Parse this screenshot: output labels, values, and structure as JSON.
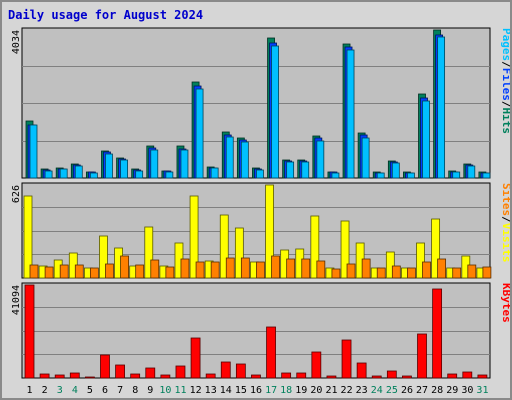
{
  "title": "Daily usage for August 2024",
  "colors": {
    "hits": "#00805c",
    "files": "#0040ff",
    "pages": "#00c0ff",
    "visits": "#ffff00",
    "sites": "#ff8000",
    "kbytes": "#ff0000",
    "weekend_label": "#00805c",
    "weekday_label": "#000000",
    "panel": "#c0c0c0"
  },
  "chart_data": [
    {
      "type": "bar",
      "title": "Daily usage for August 2024",
      "panel": "hits-files-pages",
      "categories": [
        "1",
        "2",
        "3",
        "4",
        "5",
        "6",
        "7",
        "8",
        "9",
        "10",
        "11",
        "12",
        "13",
        "14",
        "15",
        "16",
        "17",
        "18",
        "19",
        "20",
        "21",
        "22",
        "23",
        "24",
        "25",
        "26",
        "27",
        "28",
        "29",
        "30",
        "31"
      ],
      "ylim": [
        0,
        4034
      ],
      "y_tick_label": "4034",
      "legend": [
        {
          "text": "Hits",
          "color": "#00805c"
        },
        {
          "text": "Files",
          "color": "#0040ff"
        },
        {
          "text": "Pages",
          "color": "#00c0ff"
        }
      ],
      "separator": "/",
      "series": [
        {
          "name": "Hits",
          "values": [
            1549,
            232,
            271,
            379,
            170,
            746,
            558,
            232,
            875,
            201,
            864,
            2619,
            302,
            1251,
            1100,
            260,
            3816,
            498,
            486,
            1149,
            170,
            3664,
            1232,
            150,
            463,
            150,
            2282,
            4034,
            180,
            380,
            155
          ]
        },
        {
          "name": "Files",
          "values": [
            1440,
            210,
            250,
            350,
            150,
            700,
            520,
            210,
            820,
            185,
            800,
            2500,
            280,
            1180,
            1040,
            245,
            3680,
            460,
            450,
            1080,
            155,
            3560,
            1160,
            135,
            430,
            135,
            2180,
            3900,
            165,
            350,
            140
          ]
        },
        {
          "name": "Pages",
          "values": [
            1440,
            200,
            240,
            330,
            140,
            660,
            490,
            200,
            770,
            175,
            750,
            2430,
            265,
            1120,
            980,
            230,
            3600,
            440,
            430,
            1020,
            145,
            3480,
            1100,
            125,
            410,
            125,
            2100,
            3840,
            155,
            330,
            130
          ]
        }
      ]
    },
    {
      "type": "bar",
      "panel": "visits-sites",
      "categories": [
        "1",
        "2",
        "3",
        "4",
        "5",
        "6",
        "7",
        "8",
        "9",
        "10",
        "11",
        "12",
        "13",
        "14",
        "15",
        "16",
        "17",
        "18",
        "19",
        "20",
        "21",
        "22",
        "23",
        "24",
        "25",
        "26",
        "27",
        "28",
        "29",
        "30",
        "31"
      ],
      "ylim": [
        0,
        626
      ],
      "y_tick_label": "626",
      "legend": [
        {
          "text": "Visits",
          "color": "#ffff00"
        },
        {
          "text": "Sites",
          "color": "#ff8000"
        }
      ],
      "separator": "/",
      "series": [
        {
          "name": "Visits",
          "values": [
            551,
            80,
            120,
            170,
            70,
            285,
            205,
            80,
            340,
            80,
            237,
            555,
            115,
            427,
            338,
            110,
            626,
            190,
            196,
            414,
            64,
            387,
            237,
            64,
            175,
            64,
            233,
            396,
            64,
            146,
            64
          ]
        },
        {
          "name": "Sites",
          "values": [
            85,
            75,
            90,
            90,
            70,
            95,
            150,
            90,
            120,
            75,
            125,
            110,
            110,
            135,
            135,
            105,
            150,
            125,
            130,
            115,
            60,
            95,
            130,
            65,
            80,
            65,
            110,
            125,
            70,
            85,
            75
          ]
        }
      ]
    },
    {
      "type": "bar",
      "panel": "kbytes",
      "categories": [
        "1",
        "2",
        "3",
        "4",
        "5",
        "6",
        "7",
        "8",
        "9",
        "10",
        "11",
        "12",
        "13",
        "14",
        "15",
        "16",
        "17",
        "18",
        "19",
        "20",
        "21",
        "22",
        "23",
        "24",
        "25",
        "26",
        "27",
        "28",
        "29",
        "30",
        "31"
      ],
      "ylim": [
        0,
        41094
      ],
      "y_tick_label": "41094",
      "legend": [
        {
          "text": "KBytes",
          "color": "#ff0000"
        }
      ],
      "series": [
        {
          "name": "KBytes",
          "values": [
            41094,
            1700,
            1200,
            2000,
            500,
            10000,
            5800,
            1800,
            4400,
            1200,
            5100,
            17500,
            1600,
            7000,
            6000,
            1200,
            22600,
            2300,
            2300,
            11300,
            700,
            16700,
            6500,
            1100,
            3200,
            1100,
            19500,
            39200,
            1700,
            2800,
            1200
          ]
        }
      ]
    }
  ]
}
